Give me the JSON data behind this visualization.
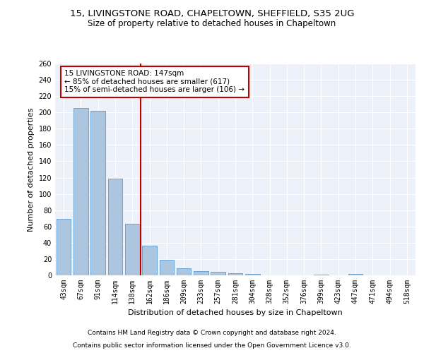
{
  "title1": "15, LIVINGSTONE ROAD, CHAPELTOWN, SHEFFIELD, S35 2UG",
  "title2": "Size of property relative to detached houses in Chapeltown",
  "xlabel": "Distribution of detached houses by size in Chapeltown",
  "ylabel": "Number of detached properties",
  "categories": [
    "43sqm",
    "67sqm",
    "91sqm",
    "114sqm",
    "138sqm",
    "162sqm",
    "186sqm",
    "209sqm",
    "233sqm",
    "257sqm",
    "281sqm",
    "304sqm",
    "328sqm",
    "352sqm",
    "376sqm",
    "399sqm",
    "423sqm",
    "447sqm",
    "471sqm",
    "494sqm",
    "518sqm"
  ],
  "values": [
    69,
    205,
    202,
    119,
    63,
    36,
    19,
    9,
    5,
    4,
    3,
    2,
    0,
    0,
    0,
    1,
    0,
    2,
    0,
    0,
    0
  ],
  "bar_color": "#adc6e0",
  "bar_edge_color": "#5b9bd5",
  "vline_x_index": 4.5,
  "vline_color": "#c00000",
  "annotation_text": "15 LIVINGSTONE ROAD: 147sqm\n← 85% of detached houses are smaller (617)\n15% of semi-detached houses are larger (106) →",
  "annotation_box_color": "white",
  "annotation_box_edge_color": "#c00000",
  "ylim": [
    0,
    260
  ],
  "yticks": [
    0,
    20,
    40,
    60,
    80,
    100,
    120,
    140,
    160,
    180,
    200,
    220,
    240,
    260
  ],
  "footnote1": "Contains HM Land Registry data © Crown copyright and database right 2024.",
  "footnote2": "Contains public sector information licensed under the Open Government Licence v3.0.",
  "background_color": "#edf2fa",
  "grid_color": "white",
  "title_fontsize": 9.5,
  "subtitle_fontsize": 8.5,
  "axis_label_fontsize": 8,
  "tick_fontsize": 7,
  "annotation_fontsize": 7.5,
  "footnote_fontsize": 6.5
}
